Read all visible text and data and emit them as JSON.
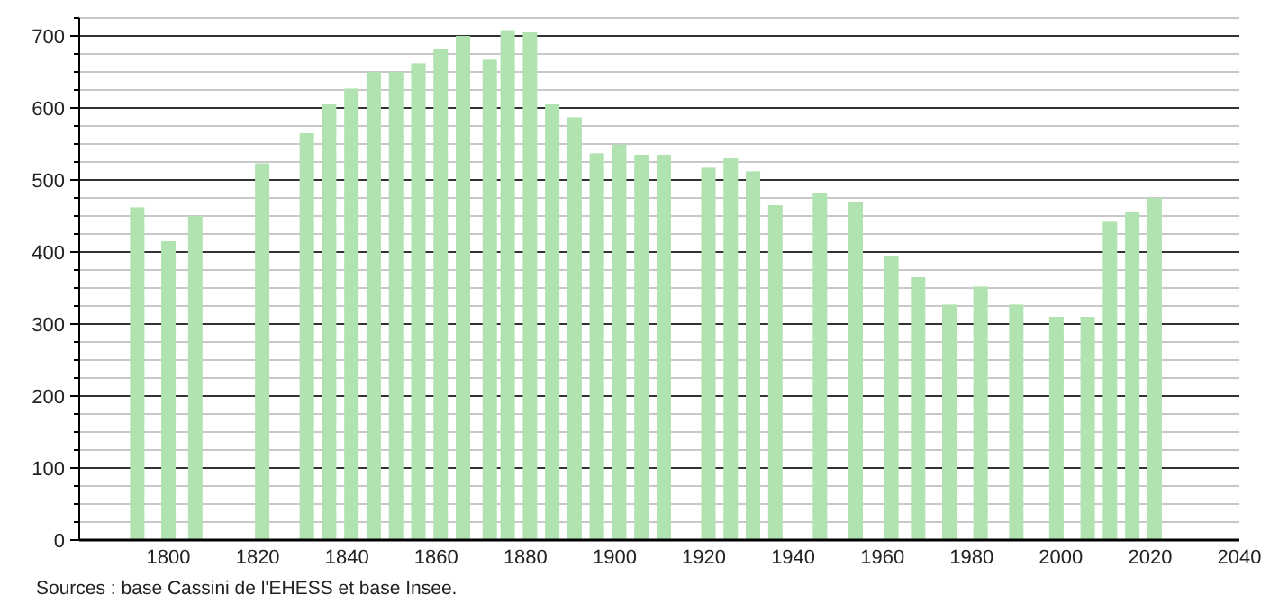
{
  "chart_data": {
    "type": "bar",
    "annotations": [
      "Sources : base Cassini de l'EHESS et base Insee."
    ],
    "x": [
      1793,
      1800,
      1806,
      1821,
      1831,
      1836,
      1841,
      1846,
      1851,
      1856,
      1861,
      1866,
      1872,
      1876,
      1881,
      1886,
      1891,
      1896,
      1901,
      1906,
      1911,
      1921,
      1926,
      1931,
      1936,
      1946,
      1954,
      1962,
      1968,
      1975,
      1982,
      1990,
      1999,
      2006,
      2011,
      2016,
      2021
    ],
    "values": [
      462,
      415,
      450,
      523,
      565,
      605,
      627,
      650,
      650,
      662,
      682,
      700,
      667,
      708,
      705,
      605,
      587,
      537,
      549,
      535,
      535,
      517,
      530,
      512,
      465,
      482,
      470,
      395,
      365,
      327,
      352,
      327,
      310,
      310,
      442,
      455,
      475
    ],
    "color": "#b0e3b0",
    "xlim": [
      1780,
      2040
    ],
    "xticks": [
      1800,
      1820,
      1840,
      1860,
      1880,
      1900,
      1920,
      1940,
      1960,
      1980,
      2000,
      2020,
      2040
    ],
    "ylim": [
      0,
      725
    ],
    "yticks": [
      0,
      {
        "value": 25,
        "label": null
      },
      {
        "value": 50,
        "label": null
      },
      {
        "value": 75,
        "label": null
      },
      100,
      {
        "value": 125,
        "label": null
      },
      {
        "value": 150,
        "label": null
      },
      {
        "value": 175,
        "label": null
      },
      200,
      {
        "value": 225,
        "label": null
      },
      {
        "value": 250,
        "label": null
      },
      {
        "value": 275,
        "label": null
      },
      300,
      {
        "value": 325,
        "label": null
      },
      {
        "value": 350,
        "label": null
      },
      {
        "value": 375,
        "label": null
      },
      400,
      {
        "value": 425,
        "label": null
      },
      {
        "value": 450,
        "label": null
      },
      {
        "value": 475,
        "label": null
      },
      500,
      {
        "value": 525,
        "label": null
      },
      {
        "value": 550,
        "label": null
      },
      {
        "value": 575,
        "label": null
      },
      600,
      {
        "value": 625,
        "label": null
      },
      {
        "value": 650,
        "label": null
      },
      {
        "value": 675,
        "label": null
      },
      700,
      {
        "value": 725,
        "label": null
      }
    ],
    "grid": "y"
  }
}
